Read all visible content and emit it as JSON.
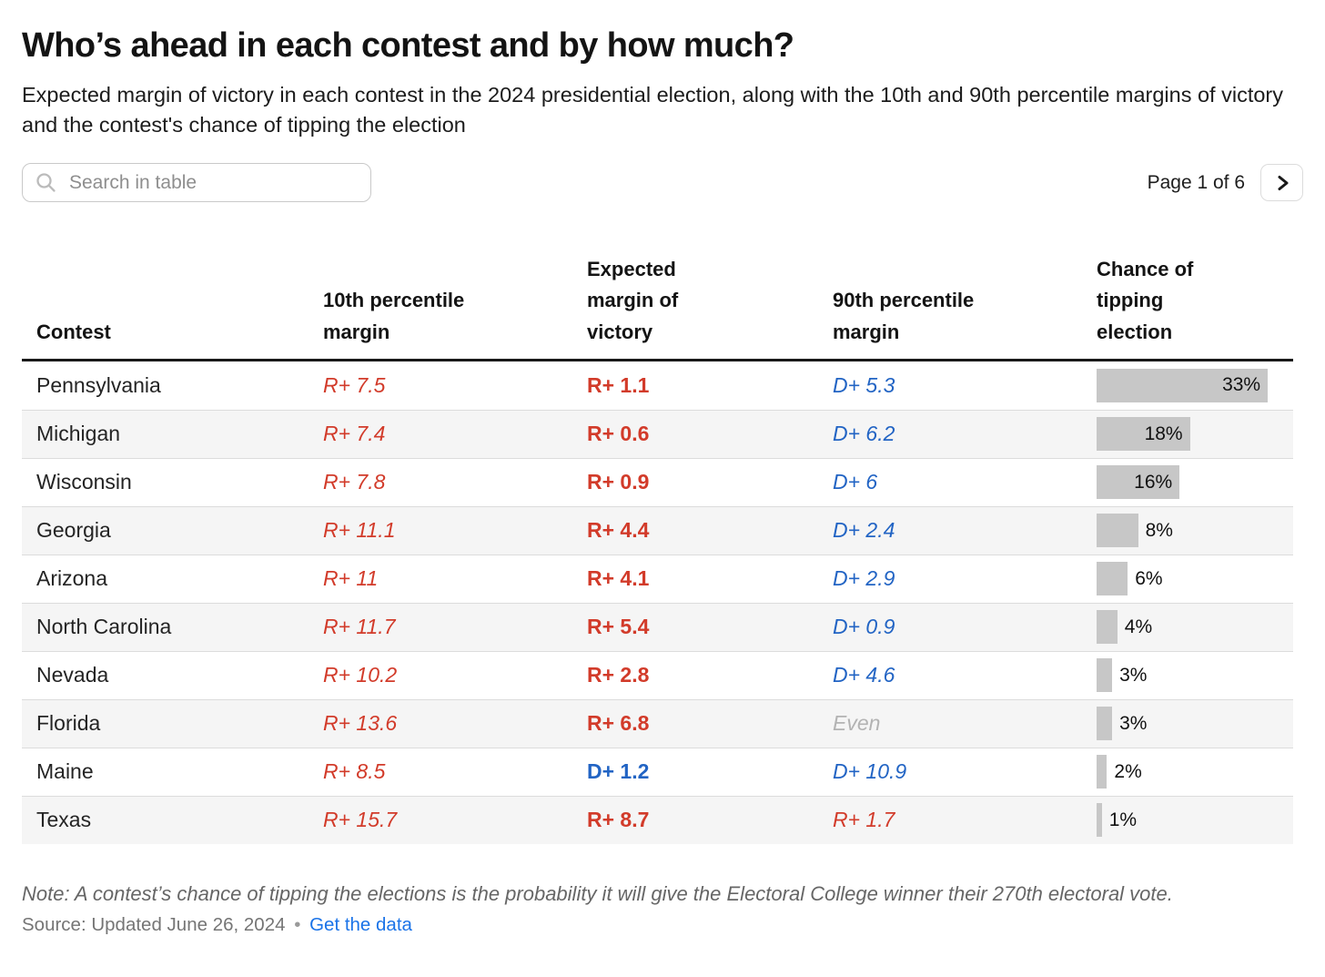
{
  "header": {
    "title": "Who’s ahead in each contest and by how much?",
    "description": "Expected margin of victory in each contest in the 2024 presidential election, along with the 10th and 90th percentile margins of victory and the contest's chance of tipping the election"
  },
  "toolbar": {
    "search_placeholder": "Search in table",
    "page_indicator": "Page 1 of 6"
  },
  "icons": {
    "search": "magnifying-glass",
    "next_page": "chevron-right"
  },
  "chart_data": {
    "type": "table",
    "title": "Who’s ahead in each contest and by how much?",
    "columns": [
      "Contest",
      "10th percentile margin",
      "Expected margin of victory",
      "90th percentile margin",
      "Chance of tipping election"
    ],
    "rows": [
      {
        "contest": "Pennsylvania",
        "p10": "R+ 7.5",
        "expected": "R+ 1.1",
        "p90": "D+ 5.3",
        "chance_pct": 33,
        "chance_label": "33%"
      },
      {
        "contest": "Michigan",
        "p10": "R+ 7.4",
        "expected": "R+ 0.6",
        "p90": "D+ 6.2",
        "chance_pct": 18,
        "chance_label": "18%"
      },
      {
        "contest": "Wisconsin",
        "p10": "R+ 7.8",
        "expected": "R+ 0.9",
        "p90": "D+ 6",
        "chance_pct": 16,
        "chance_label": "16%"
      },
      {
        "contest": "Georgia",
        "p10": "R+ 11.1",
        "expected": "R+ 4.4",
        "p90": "D+ 2.4",
        "chance_pct": 8,
        "chance_label": "8%"
      },
      {
        "contest": "Arizona",
        "p10": "R+ 11",
        "expected": "R+ 4.1",
        "p90": "D+ 2.9",
        "chance_pct": 6,
        "chance_label": "6%"
      },
      {
        "contest": "North Carolina",
        "p10": "R+ 11.7",
        "expected": "R+ 5.4",
        "p90": "D+ 0.9",
        "chance_pct": 4,
        "chance_label": "4%"
      },
      {
        "contest": "Nevada",
        "p10": "R+ 10.2",
        "expected": "R+ 2.8",
        "p90": "D+ 4.6",
        "chance_pct": 3,
        "chance_label": "3%"
      },
      {
        "contest": "Florida",
        "p10": "R+ 13.6",
        "expected": "R+ 6.8",
        "p90": "Even",
        "chance_pct": 3,
        "chance_label": "3%"
      },
      {
        "contest": "Maine",
        "p10": "R+ 8.5",
        "expected": "D+ 1.2",
        "p90": "D+ 10.9",
        "chance_pct": 2,
        "chance_label": "2%"
      },
      {
        "contest": "Texas",
        "p10": "R+ 15.7",
        "expected": "R+ 8.7",
        "p90": "R+ 1.7",
        "chance_pct": 1,
        "chance_label": "1%"
      }
    ]
  },
  "footer": {
    "note": "Note: A contest’s chance of tipping the elections is the probability it will give the Electoral College winner their 270th electoral vote.",
    "source": "Source: Updated June 26, 2024",
    "separator": "•",
    "link_label": "Get the data"
  },
  "colors": {
    "republican": "#d23b2a",
    "democrat": "#2264c4",
    "even": "#b3b3b3",
    "bar_fill": "#c7c7c7",
    "link": "#1a73e8"
  }
}
